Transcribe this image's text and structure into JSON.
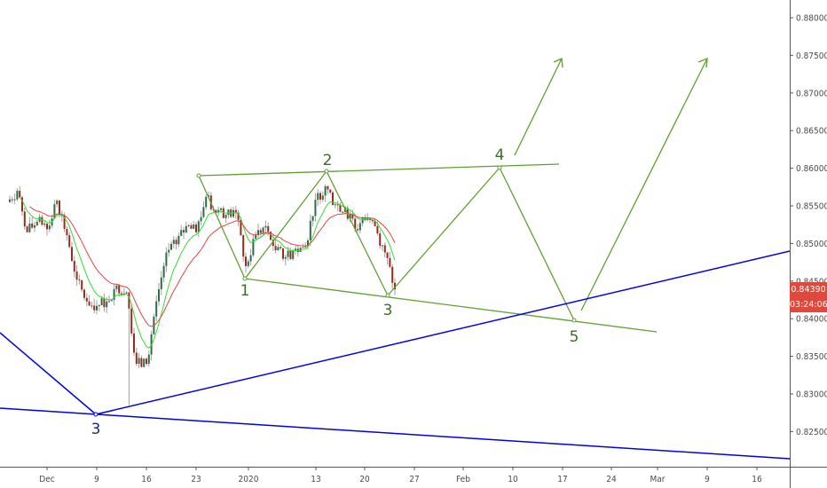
{
  "chart_data": {
    "type": "candlestick",
    "title": "",
    "colors": {
      "up": "#2f6b47",
      "down": "#9b2a1e",
      "wick": "#a0a0a0",
      "ma_fast": "#33dd33",
      "ma_slow": "#f04040",
      "wave_lines": "#5fa033",
      "trend_lines": "#0000ee",
      "price_badge": "#e0483e"
    },
    "daily_closes": [
      0.8555,
      0.857,
      0.8515,
      0.8529,
      0.8519,
      0.8557,
      0.8511,
      0.8452,
      0.8423,
      0.8417,
      0.8423,
      0.8444,
      0.8435,
      0.834,
      0.834,
      0.8423,
      0.8488,
      0.8499,
      0.8523,
      0.8515,
      0.8562,
      0.8541,
      0.8538,
      0.8541,
      0.847,
      0.8511,
      0.8523,
      0.8491,
      0.8482,
      0.8493,
      0.8496,
      0.8558,
      0.8576,
      0.8552,
      0.8547,
      0.8519,
      0.8531,
      0.8523,
      0.8488,
      0.8439
    ],
    "y_ticks": [
      "0.88000",
      "0.87500",
      "0.87000",
      "0.86500",
      "0.86000",
      "0.85500",
      "0.85000",
      "0.84500",
      "0.84000",
      "0.83500",
      "0.83000",
      "0.82500"
    ],
    "ylim": [
      0.8215,
      0.882
    ],
    "x_ticks": [
      "Dec",
      "9",
      "16",
      "23",
      "2020",
      "13",
      "20",
      "27",
      "Feb",
      "10",
      "17",
      "24",
      "Mar",
      "9",
      "16"
    ],
    "last_price": "0.84390",
    "countdown": "03:24:06",
    "wave_labels": {
      "w1": "1",
      "w2": "2",
      "w3": "3",
      "w4": "4",
      "w5": "5",
      "blue3": "3"
    }
  }
}
